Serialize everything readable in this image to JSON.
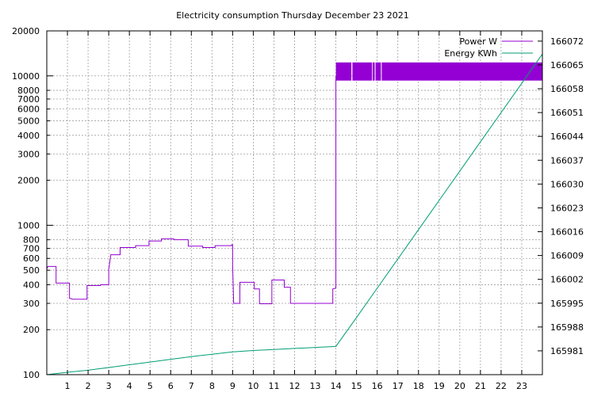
{
  "chart_data": {
    "type": "line",
    "title": "Electricity consumption Thursday December 23 2021",
    "x": {
      "range": [
        0,
        24
      ],
      "ticks": [
        1,
        2,
        3,
        4,
        5,
        6,
        7,
        8,
        9,
        10,
        11,
        12,
        13,
        14,
        15,
        16,
        17,
        18,
        19,
        20,
        21,
        22,
        23
      ]
    },
    "y_left": {
      "scale": "log",
      "range": [
        100,
        20000
      ],
      "major_ticks": [
        100,
        1000,
        10000
      ],
      "ticks": [
        100,
        200,
        300,
        400,
        500,
        600,
        700,
        800,
        1000,
        2000,
        3000,
        4000,
        5000,
        6000,
        7000,
        8000,
        10000,
        20000
      ]
    },
    "y_right": {
      "scale": "linear",
      "range": [
        165974,
        166075
      ],
      "ticks": [
        165981,
        165988,
        165995,
        166002,
        166009,
        166016,
        166023,
        166030,
        166037,
        166044,
        166051,
        166058,
        166065,
        166072
      ]
    },
    "grid": true,
    "legend": "top-right",
    "series": [
      {
        "name": "Power W",
        "axis": "left",
        "color": "#9400d3",
        "style": "step",
        "points": [
          [
            0,
            510
          ],
          [
            0.05,
            530
          ],
          [
            0.45,
            530
          ],
          [
            0.45,
            410
          ],
          [
            1.1,
            410
          ],
          [
            1.1,
            325
          ],
          [
            1.25,
            320
          ],
          [
            1.95,
            320
          ],
          [
            1.95,
            395
          ],
          [
            2.6,
            395
          ],
          [
            2.6,
            400
          ],
          [
            3.0,
            400
          ],
          [
            3.0,
            505
          ],
          [
            3.1,
            635
          ],
          [
            3.55,
            635
          ],
          [
            3.55,
            710
          ],
          [
            4.3,
            710
          ],
          [
            4.3,
            730
          ],
          [
            4.95,
            730
          ],
          [
            4.95,
            785
          ],
          [
            5.55,
            785
          ],
          [
            5.55,
            810
          ],
          [
            6.15,
            810
          ],
          [
            6.15,
            800
          ],
          [
            6.85,
            800
          ],
          [
            6.85,
            725
          ],
          [
            7.55,
            725
          ],
          [
            7.55,
            710
          ],
          [
            8.15,
            710
          ],
          [
            8.15,
            730
          ],
          [
            8.95,
            730
          ],
          [
            8.95,
            740
          ],
          [
            9.0,
            740
          ],
          [
            9.0,
            540
          ],
          [
            9.05,
            300
          ],
          [
            9.35,
            300
          ],
          [
            9.35,
            415
          ],
          [
            10.05,
            415
          ],
          [
            10.05,
            375
          ],
          [
            10.3,
            375
          ],
          [
            10.3,
            298
          ],
          [
            10.9,
            298
          ],
          [
            10.9,
            430
          ],
          [
            11.5,
            430
          ],
          [
            11.5,
            385
          ],
          [
            11.8,
            385
          ],
          [
            11.8,
            300
          ],
          [
            13.85,
            300
          ],
          [
            13.85,
            375
          ],
          [
            14.0,
            380
          ],
          [
            14.0,
            10000
          ]
        ],
        "band": {
          "x_from": 14.0,
          "x_to": 24.0,
          "y_low": 9300,
          "y_high": 12300
        },
        "band_gaps": [
          [
            14.75,
            14.8
          ],
          [
            15.75,
            15.78
          ],
          [
            15.88,
            15.92
          ],
          [
            16.18,
            16.22
          ]
        ]
      },
      {
        "name": "Energy KWh",
        "axis": "right",
        "color": "#009e73",
        "style": "line",
        "points": [
          [
            0.0,
            165974.0
          ],
          [
            1.0,
            165974.7
          ],
          [
            2.0,
            165975.3
          ],
          [
            3.0,
            165976.1
          ],
          [
            4.0,
            165976.9
          ],
          [
            5.0,
            165977.7
          ],
          [
            6.0,
            165978.5
          ],
          [
            7.0,
            165979.3
          ],
          [
            8.0,
            165980.0
          ],
          [
            9.0,
            165980.7
          ],
          [
            10.0,
            165981.1
          ],
          [
            11.0,
            165981.4
          ],
          [
            12.0,
            165981.7
          ],
          [
            13.0,
            165982.0
          ],
          [
            14.0,
            165982.3
          ],
          [
            15.0,
            165990.8
          ],
          [
            16.0,
            165999.4
          ],
          [
            17.0,
            166008.0
          ],
          [
            18.0,
            166016.6
          ],
          [
            19.0,
            166025.2
          ],
          [
            20.0,
            166033.8
          ],
          [
            21.0,
            166042.4
          ],
          [
            22.0,
            166051.0
          ],
          [
            23.0,
            166059.6
          ],
          [
            24.0,
            166068.2
          ]
        ]
      }
    ]
  }
}
